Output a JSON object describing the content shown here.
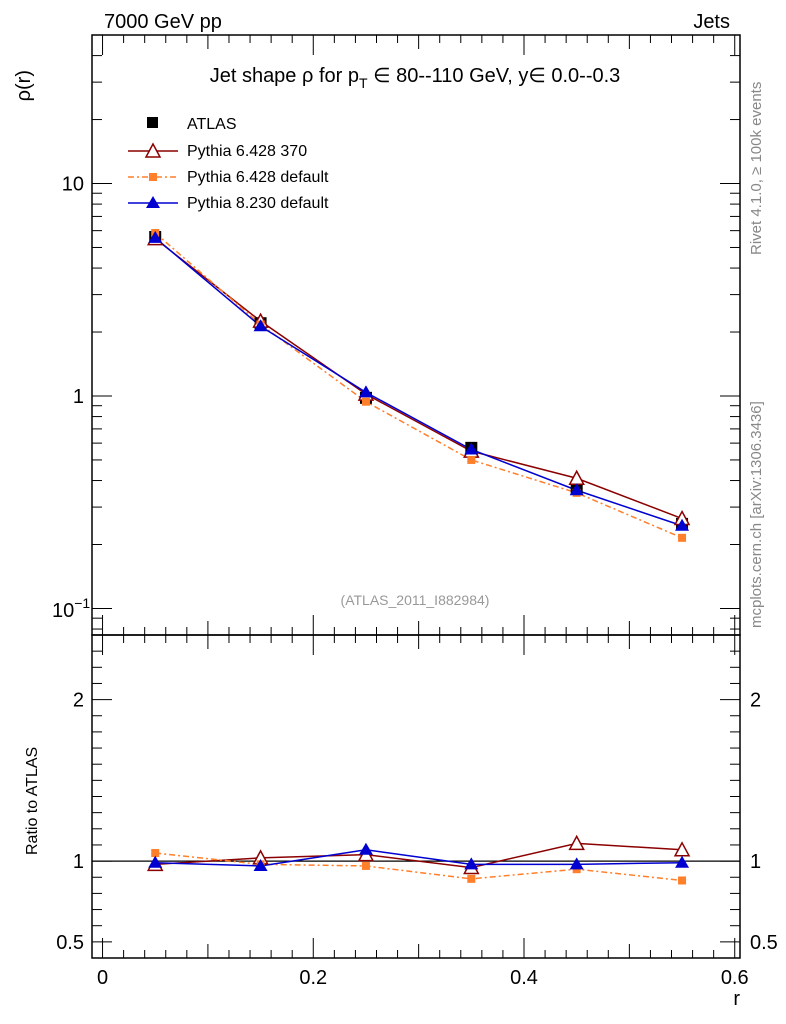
{
  "header": {
    "energy_label": "7000 GeV pp",
    "category_label": "Jets"
  },
  "side_labels": {
    "rivet": "Rivet 4.1.0, ≥ 100k events",
    "source": "mcplots.cern.ch [arXiv:1306.3436]"
  },
  "colors": {
    "data": "#000000",
    "pythia6_370": "#8b0000",
    "pythia6_default": "#ff7f2a",
    "pythia8_default": "#0000d0",
    "watermark": "#999999"
  },
  "chart_data": [
    {
      "type": "line",
      "panel": "main",
      "title_parts": {
        "pre": "Jet shape ",
        "rho": "ρ",
        "mid1": " for p",
        "sub": "T",
        "mid2": " ∈ 80--110 GeV, y",
        "mid3": "∈ 0.0--0.3"
      },
      "ylabel": "ρ(r)",
      "yscale": "log",
      "ylim": [
        0.075,
        50
      ],
      "xlim": [
        -0.01,
        0.605
      ],
      "yticks": [
        {
          "value": 10,
          "label": "10"
        },
        {
          "value": 1,
          "label": "1"
        }
      ],
      "ytick_low": {
        "base": "10",
        "exp": "−1",
        "value": 0.1
      },
      "watermark": "(ATLAS_2011_I882984)",
      "x": [
        0.05,
        0.15,
        0.25,
        0.35,
        0.45,
        0.55
      ],
      "series": [
        {
          "name": "ATLAS",
          "key": "data",
          "marker": "square",
          "values": [
            5.6,
            2.2,
            0.98,
            0.57,
            0.37,
            0.25
          ]
        },
        {
          "name": "Pythia 6.428 370",
          "key": "pythia6_370",
          "marker": "open-triangle",
          "values": [
            5.5,
            2.25,
            1.02,
            0.55,
            0.41,
            0.265
          ]
        },
        {
          "name": "Pythia 6.428 default",
          "key": "pythia6_default",
          "marker": "small-square",
          "values": [
            5.85,
            2.17,
            0.94,
            0.5,
            0.35,
            0.215
          ]
        },
        {
          "name": "Pythia 8.230 default",
          "key": "pythia8_default",
          "marker": "filled-triangle",
          "values": [
            5.55,
            2.13,
            1.04,
            0.56,
            0.36,
            0.245
          ]
        }
      ]
    },
    {
      "type": "line",
      "panel": "ratio",
      "ylabel": "Ratio to ATLAS",
      "xlabel": "r",
      "ylim": [
        0.4,
        2.4
      ],
      "xlim": [
        -0.01,
        0.605
      ],
      "yticks": [
        {
          "value": 2,
          "label": "2"
        },
        {
          "value": 1,
          "label": "1"
        },
        {
          "value": 0.5,
          "label": "0.5"
        }
      ],
      "xticks": [
        {
          "value": 0,
          "label": "0"
        },
        {
          "value": 0.2,
          "label": "0.2"
        },
        {
          "value": 0.4,
          "label": "0.4"
        },
        {
          "value": 0.6,
          "label": "0.6"
        }
      ],
      "x": [
        0.05,
        0.15,
        0.25,
        0.35,
        0.45,
        0.55
      ],
      "series": [
        {
          "name": "Pythia 6.428 370",
          "key": "pythia6_370",
          "marker": "open-triangle",
          "values": [
            0.98,
            1.02,
            1.04,
            0.96,
            1.11,
            1.07
          ]
        },
        {
          "name": "Pythia 6.428 default",
          "key": "pythia6_default",
          "marker": "small-square",
          "values": [
            1.05,
            0.98,
            0.97,
            0.89,
            0.95,
            0.88
          ]
        },
        {
          "name": "Pythia 8.230 default",
          "key": "pythia8_default",
          "marker": "filled-triangle",
          "values": [
            0.99,
            0.97,
            1.07,
            0.98,
            0.98,
            0.99
          ]
        }
      ]
    }
  ]
}
